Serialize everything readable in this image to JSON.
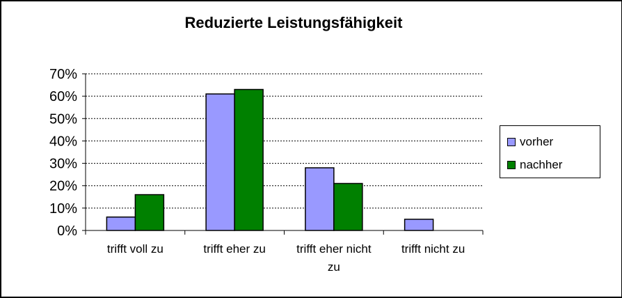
{
  "chart_data": {
    "type": "bar",
    "title": "Reduzierte Leistungsfähigkeit",
    "xlabel": "",
    "ylabel": "",
    "categories": [
      "trifft voll zu",
      "trifft eher zu",
      "trifft eher nicht zu",
      "trifft nicht zu"
    ],
    "category_label_lines": [
      [
        "trifft voll zu"
      ],
      [
        "trifft eher zu"
      ],
      [
        "trifft eher nicht",
        "zu"
      ],
      [
        "trifft nicht zu"
      ]
    ],
    "series": [
      {
        "name": "vorher",
        "values": [
          6,
          61,
          28,
          5
        ],
        "color": "#9999ff"
      },
      {
        "name": "nachher",
        "values": [
          16,
          63,
          21,
          0
        ],
        "color": "#008000"
      }
    ],
    "ylim": [
      0,
      70
    ],
    "yticks": [
      0,
      10,
      20,
      30,
      40,
      50,
      60,
      70
    ],
    "ytick_labels": [
      "0%",
      "10%",
      "20%",
      "30%",
      "40%",
      "50%",
      "60%",
      "70%"
    ],
    "grid": true,
    "legend_position": "right"
  }
}
